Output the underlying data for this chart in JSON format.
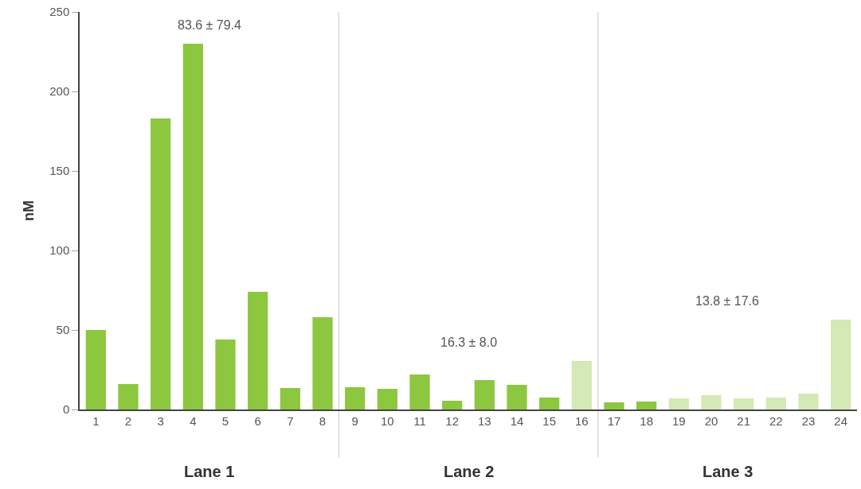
{
  "chart_data": {
    "type": "bar",
    "ylabel": "nM",
    "x": [
      1,
      2,
      3,
      4,
      5,
      6,
      7,
      8,
      9,
      10,
      11,
      12,
      13,
      14,
      15,
      16,
      17,
      18,
      19,
      20,
      21,
      22,
      23,
      24
    ],
    "values": [
      50,
      16,
      183,
      230,
      44,
      74,
      13.5,
      58,
      14,
      13,
      22,
      5.5,
      18.5,
      15.5,
      7.5,
      30.5,
      4.5,
      5,
      7,
      9,
      7,
      7.5,
      10,
      56.5
    ],
    "colors": [
      "#8dc63f",
      "#8dc63f",
      "#8dc63f",
      "#8dc63f",
      "#8dc63f",
      "#8dc63f",
      "#8dc63f",
      "#8dc63f",
      "#8dc63f",
      "#8dc63f",
      "#8dc63f",
      "#8dc63f",
      "#8dc63f",
      "#8dc63f",
      "#8dc63f",
      "#d4e9b5",
      "#8dc63f",
      "#8dc63f",
      "#d4e9b5",
      "#d4e9b5",
      "#d4e9b5",
      "#d4e9b5",
      "#d4e9b5",
      "#d4e9b5"
    ],
    "xlim": [
      0.5,
      24.5
    ],
    "xticks": [
      1,
      2,
      3,
      4,
      5,
      6,
      7,
      8,
      9,
      10,
      11,
      12,
      13,
      14,
      15,
      16,
      17,
      18,
      19,
      20,
      21,
      22,
      23,
      24
    ],
    "ylim": [
      0,
      250
    ],
    "yticks": [
      0,
      50,
      100,
      150,
      200,
      250
    ],
    "grid": false,
    "ref_lines": [
      {
        "axis": "x",
        "value": 8.5,
        "color": "#d9d9d9"
      },
      {
        "axis": "x",
        "value": 16.5,
        "color": "#d9d9d9"
      }
    ],
    "annotations": [
      "83.6 ± 79.4",
      "16.3 ± 8.0",
      "13.8 ± 17.6",
      "Lane 1",
      "Lane 2",
      "Lane 3"
    ]
  }
}
